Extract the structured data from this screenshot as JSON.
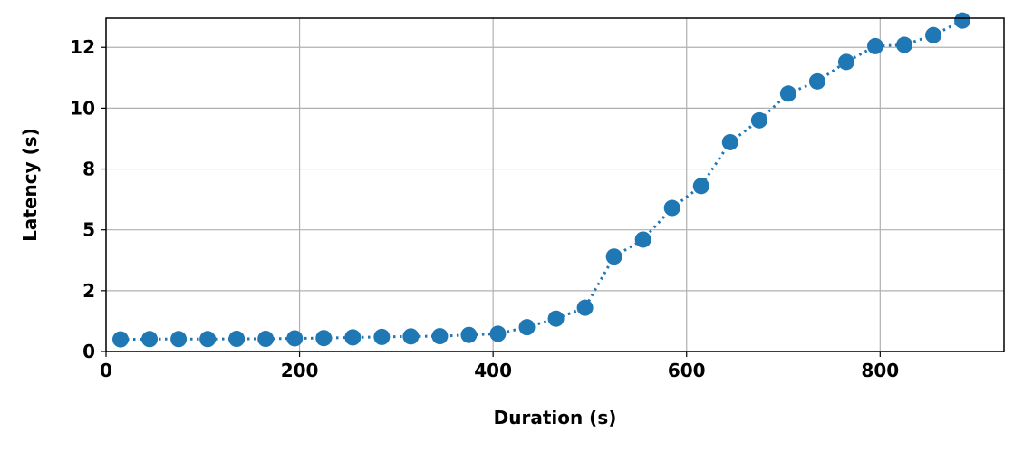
{
  "chart_data": {
    "type": "line",
    "title": "",
    "xlabel": "Duration (s)",
    "ylabel": "Latency (s)",
    "xlim": [
      0,
      928
    ],
    "ylim": [
      0,
      13.7
    ],
    "x_ticks": [
      {
        "value": 0,
        "label": "0"
      },
      {
        "value": 200,
        "label": "200"
      },
      {
        "value": 400,
        "label": "400"
      },
      {
        "value": 600,
        "label": "600"
      },
      {
        "value": 800,
        "label": "800"
      }
    ],
    "y_ticks": [
      {
        "value": 0,
        "label": "0"
      },
      {
        "value": 2.5,
        "label": "2"
      },
      {
        "value": 5,
        "label": "5"
      },
      {
        "value": 7.5,
        "label": "8"
      },
      {
        "value": 10,
        "label": "10"
      },
      {
        "value": 12.5,
        "label": "12"
      }
    ],
    "grid": true,
    "legend": "none",
    "series": [
      {
        "color": "#1f77b4",
        "line_style": "dotted",
        "marker": "circle",
        "x": [
          15,
          45,
          75,
          105,
          135,
          165,
          195,
          225,
          255,
          285,
          315,
          345,
          375,
          405,
          435,
          465,
          495,
          525,
          555,
          585,
          615,
          645,
          675,
          705,
          735,
          765,
          795,
          825,
          855,
          885
        ],
        "y": [
          0.5,
          0.51,
          0.51,
          0.51,
          0.52,
          0.52,
          0.54,
          0.55,
          0.58,
          0.6,
          0.62,
          0.63,
          0.68,
          0.73,
          1.0,
          1.35,
          1.8,
          3.9,
          4.6,
          5.9,
          6.8,
          8.6,
          9.5,
          10.6,
          11.1,
          11.9,
          12.55,
          12.6,
          13.0,
          13.6
        ]
      }
    ]
  }
}
